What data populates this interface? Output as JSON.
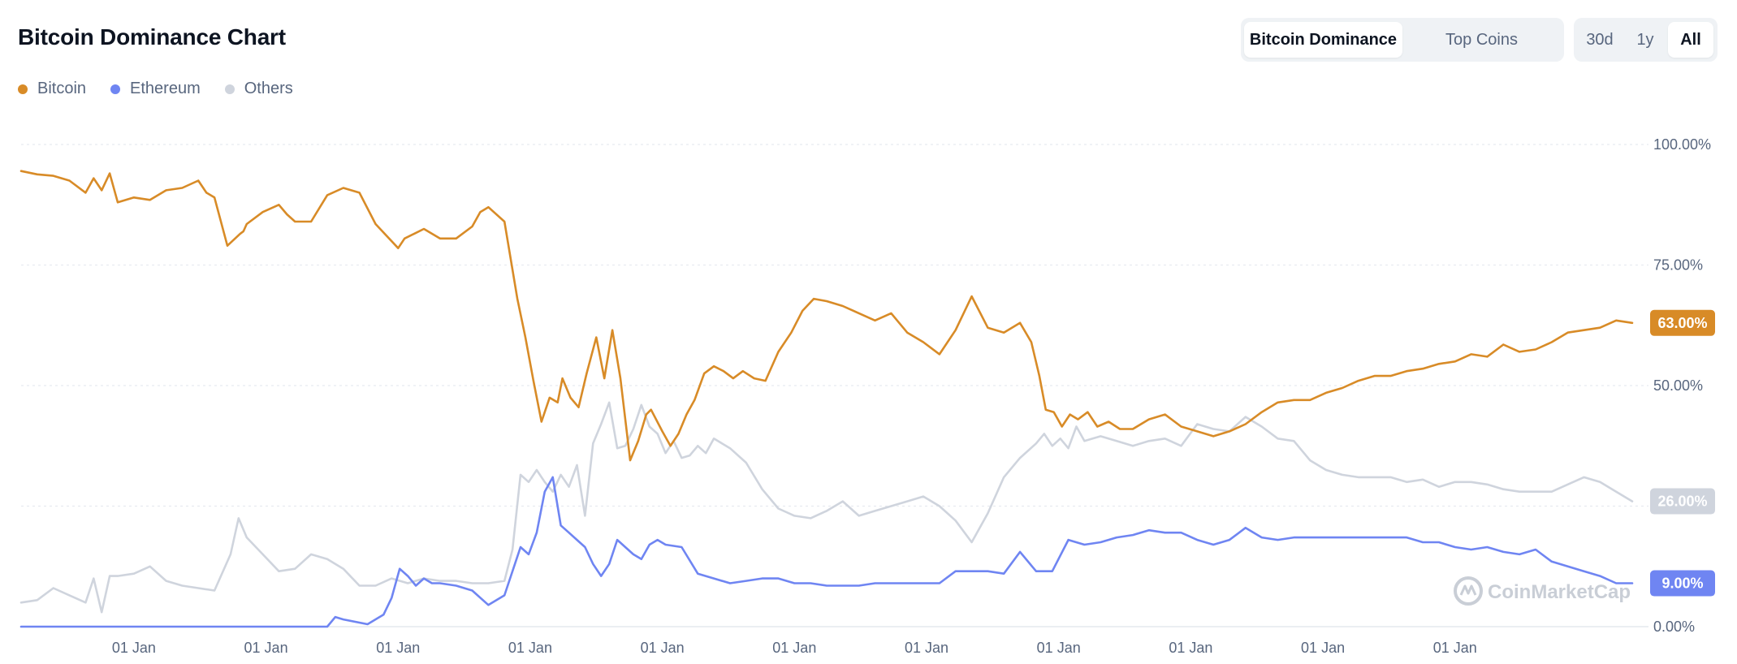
{
  "page_title": "Bitcoin Dominance Chart",
  "view_toggle": {
    "options": [
      "Bitcoin Dominance",
      "Top Coins"
    ],
    "active": 0
  },
  "range_toggle": {
    "options": [
      "30d",
      "1y",
      "All"
    ],
    "active": 2
  },
  "watermark": "CoinMarketCap",
  "colors": {
    "bitcoin": "#d88b27",
    "ethereum": "#6f85f2",
    "others": "#cfd4dd",
    "grid": "#e8ebf0",
    "text": "#58667e"
  },
  "chart_data": {
    "type": "line",
    "xlabel": "",
    "ylabel": "",
    "ylim": [
      0,
      100
    ],
    "y_ticks": [
      "0.00%",
      "25.00%",
      "50.00%",
      "75.00%",
      "100.00%"
    ],
    "y_tick_values": [
      0,
      25,
      50,
      75,
      100
    ],
    "x_range": [
      0,
      100
    ],
    "x_tick_positions": [
      7,
      15.2,
      23.4,
      31.6,
      39.8,
      48,
      56.2,
      64.4,
      72.6,
      80.8,
      89
    ],
    "x_tick_labels": [
      "01 Jan",
      "01 Jan",
      "01 Jan",
      "01 Jan",
      "01 Jan",
      "01 Jan",
      "01 Jan",
      "01 Jan",
      "01 Jan",
      "01 Jan",
      "01 Jan"
    ],
    "legend_position": "top-left",
    "series": [
      {
        "name": "Bitcoin",
        "color": "#d88b27",
        "end_label": "63.00%",
        "x": [
          0,
          1,
          2,
          3,
          4,
          4.5,
          5,
          5.5,
          6,
          7,
          8,
          9,
          10,
          11,
          11.5,
          12,
          12.8,
          13.6,
          13.8,
          14,
          15,
          16,
          16.5,
          17,
          18,
          19,
          20,
          21,
          22,
          23.4,
          23.8,
          24.4,
          25,
          26,
          27,
          28,
          28.5,
          29,
          30,
          30.8,
          31.3,
          31.8,
          32.3,
          32.8,
          33.3,
          33.6,
          34.1,
          34.6,
          35.1,
          35.7,
          36.2,
          36.7,
          37.2,
          37.8,
          38.3,
          38.8,
          39.1,
          39.8,
          40.3,
          40.8,
          41.3,
          41.8,
          42.4,
          43.0,
          43.6,
          44.2,
          44.8,
          45.5,
          46.2,
          47.0,
          47.8,
          48.5,
          49.2,
          50.0,
          51.0,
          52.0,
          53.0,
          54.0,
          55.0,
          56.0,
          57.0,
          58.0,
          59.0,
          60.0,
          61.0,
          62.0,
          62.7,
          63.2,
          63.6,
          64.1,
          64.6,
          65.1,
          65.6,
          66.2,
          66.8,
          67.5,
          68.2,
          69.0,
          70.0,
          71.0,
          72.0,
          73.0,
          74.0,
          75.0,
          76.0,
          77.0,
          78.0,
          79.0,
          80.0,
          81.0,
          82.0,
          83.0,
          84.0,
          85.0,
          86.0,
          87.0,
          88.0,
          89.0,
          90.0,
          91.0,
          92.0,
          93.0,
          94.0,
          95.0,
          96.0,
          97.0,
          98.0,
          99.0,
          100
        ],
        "values": [
          94.5,
          93.8,
          93.5,
          92.5,
          90.0,
          93.0,
          90.5,
          94.0,
          88.0,
          89.0,
          88.5,
          90.5,
          91.0,
          92.5,
          90.0,
          89.0,
          79.0,
          81.5,
          82.0,
          83.5,
          86.0,
          87.5,
          85.5,
          84.0,
          84.0,
          89.5,
          91.0,
          90.0,
          83.5,
          78.5,
          80.5,
          81.5,
          82.5,
          80.5,
          80.5,
          83.0,
          86.0,
          87.0,
          84.0,
          68.0,
          60.0,
          51.0,
          42.5,
          47.5,
          46.5,
          51.5,
          47.5,
          45.5,
          52.5,
          60.0,
          51.5,
          61.5,
          51.5,
          34.5,
          38.5,
          44.0,
          45.0,
          40.5,
          37.5,
          40.0,
          44.0,
          47.0,
          52.5,
          54.0,
          53.0,
          51.5,
          53.0,
          51.5,
          51.0,
          57.0,
          61.0,
          65.5,
          68.0,
          67.5,
          66.5,
          65.0,
          63.5,
          65.0,
          61.0,
          59.0,
          56.5,
          61.5,
          68.5,
          62.0,
          61.0,
          63.0,
          59.0,
          52.0,
          45.0,
          44.5,
          41.5,
          44.0,
          43.0,
          44.5,
          41.5,
          42.5,
          41.0,
          41.0,
          43.0,
          44.0,
          41.5,
          40.5,
          39.5,
          40.5,
          42.0,
          44.5,
          46.5,
          47.0,
          47.0,
          48.5,
          49.5,
          51.0,
          52.0,
          52.0,
          53.0,
          53.5,
          54.5,
          55.0,
          56.5,
          56.0,
          58.5,
          57.0,
          57.5,
          59.0,
          61.0,
          61.5,
          62.0,
          63.5,
          63.0
        ]
      },
      {
        "name": "Ethereum",
        "color": "#6f85f2",
        "end_label": "9.00%",
        "x": [
          0,
          19.0,
          19.5,
          20.0,
          21.5,
          22.5,
          23.0,
          23.5,
          24.0,
          24.5,
          25.0,
          25.5,
          26.0,
          27.0,
          28.0,
          29.0,
          30.0,
          31.0,
          31.5,
          32.0,
          32.5,
          33.0,
          33.5,
          34.0,
          34.5,
          35.0,
          35.5,
          36.0,
          36.5,
          37.0,
          37.5,
          38.0,
          38.5,
          39.0,
          39.5,
          40.0,
          41.0,
          42.0,
          43.0,
          44.0,
          45.0,
          46.0,
          47.0,
          48.0,
          49.0,
          50.0,
          51.0,
          52.0,
          53.0,
          54.0,
          55.0,
          56.0,
          57.0,
          58.0,
          59.0,
          60.0,
          61.0,
          62.0,
          63.0,
          64.0,
          65.0,
          66.0,
          67.0,
          68.0,
          69.0,
          70.0,
          71.0,
          72.0,
          73.0,
          74.0,
          75.0,
          76.0,
          77.0,
          78.0,
          79.0,
          80.0,
          81.0,
          82.0,
          83.0,
          84.0,
          85.0,
          86.0,
          87.0,
          88.0,
          89.0,
          90.0,
          91.0,
          92.0,
          93.0,
          94.0,
          95.0,
          96.0,
          97.0,
          98.0,
          99.0,
          100
        ],
        "values": [
          0,
          0,
          2.0,
          1.5,
          0.5,
          2.5,
          6.0,
          12.0,
          10.5,
          8.5,
          10.0,
          9.0,
          9.0,
          8.5,
          7.5,
          4.5,
          6.5,
          16.5,
          15.0,
          19.5,
          28.0,
          31.0,
          21.0,
          19.5,
          18.0,
          16.5,
          13.0,
          10.5,
          13.0,
          18.0,
          16.5,
          15.0,
          14.0,
          17.0,
          18.0,
          17.0,
          16.5,
          11.0,
          10.0,
          9.0,
          9.5,
          10.0,
          10.0,
          9.0,
          9.0,
          8.5,
          8.5,
          8.5,
          9.0,
          9.0,
          9.0,
          9.0,
          9.0,
          11.5,
          11.5,
          11.5,
          11.0,
          15.5,
          11.5,
          11.5,
          18.0,
          17.0,
          17.5,
          18.5,
          19.0,
          20.0,
          19.5,
          19.5,
          18.0,
          17.0,
          18.0,
          20.5,
          18.5,
          18.0,
          18.5,
          18.5,
          18.5,
          18.5,
          18.5,
          18.5,
          18.5,
          18.5,
          17.5,
          17.5,
          16.5,
          16.0,
          16.5,
          15.5,
          15.0,
          16.0,
          13.5,
          12.5,
          11.5,
          10.5,
          9.0,
          9.0
        ]
      },
      {
        "name": "Others",
        "color": "#cfd4dd",
        "end_label": "26.00%",
        "x": [
          0,
          1.0,
          2.0,
          3.0,
          4.0,
          4.5,
          5.0,
          5.5,
          6.0,
          7.0,
          8.0,
          9.0,
          10.0,
          11.0,
          12.0,
          13.0,
          13.5,
          14.0,
          15.0,
          16.0,
          17.0,
          18.0,
          19.0,
          20.0,
          21.0,
          22.0,
          23.0,
          24.0,
          25.0,
          26.0,
          27.0,
          28.0,
          29.0,
          30.0,
          30.5,
          31.0,
          31.5,
          32.0,
          32.5,
          33.0,
          33.5,
          34.0,
          34.5,
          35.0,
          35.5,
          36.0,
          36.5,
          37.0,
          37.5,
          38.0,
          38.5,
          39.0,
          39.5,
          40.0,
          40.5,
          41.0,
          41.5,
          42.0,
          42.5,
          43.0,
          44.0,
          45.0,
          46.0,
          47.0,
          48.0,
          49.0,
          50.0,
          51.0,
          52.0,
          53.0,
          54.0,
          55.0,
          56.0,
          57.0,
          58.0,
          59.0,
          60.0,
          61.0,
          62.0,
          63.0,
          63.5,
          64.0,
          64.5,
          65.0,
          65.5,
          66.0,
          67.0,
          68.0,
          69.0,
          70.0,
          71.0,
          72.0,
          73.0,
          74.0,
          75.0,
          76.0,
          77.0,
          78.0,
          79.0,
          80.0,
          81.0,
          82.0,
          83.0,
          84.0,
          85.0,
          86.0,
          87.0,
          88.0,
          89.0,
          90.0,
          91.0,
          92.0,
          93.0,
          94.0,
          95.0,
          96.0,
          97.0,
          98.0,
          99.0,
          100
        ],
        "values": [
          5.0,
          5.5,
          8.0,
          6.5,
          5.0,
          10.0,
          3.0,
          10.5,
          10.5,
          11.0,
          12.5,
          9.5,
          8.5,
          8.0,
          7.5,
          15.0,
          22.5,
          18.5,
          15.0,
          11.5,
          12.0,
          15.0,
          14.0,
          12.0,
          8.5,
          8.5,
          10.0,
          9.0,
          10.0,
          9.5,
          9.5,
          9.0,
          9.0,
          9.5,
          16.0,
          31.5,
          30.0,
          32.5,
          30.0,
          28.0,
          31.5,
          29.0,
          33.5,
          23.0,
          38.0,
          42.0,
          46.5,
          37.0,
          37.5,
          41.0,
          46.0,
          41.5,
          40.0,
          36.0,
          38.5,
          35.0,
          35.5,
          37.5,
          36.0,
          39.0,
          37.0,
          34.0,
          28.5,
          24.5,
          23.0,
          22.5,
          24.0,
          26.0,
          23.0,
          24.0,
          25.0,
          26.0,
          27.0,
          25.0,
          22.0,
          17.5,
          23.5,
          31.0,
          35.0,
          38.0,
          40.0,
          37.5,
          39.0,
          37.0,
          41.5,
          38.5,
          39.5,
          38.5,
          37.5,
          38.5,
          39.0,
          37.5,
          42.0,
          41.0,
          40.5,
          43.5,
          41.5,
          39.0,
          38.5,
          34.5,
          32.5,
          31.5,
          31.0,
          31.0,
          31.0,
          30.0,
          30.5,
          29.0,
          30.0,
          30.0,
          29.5,
          28.5,
          28.0,
          28.0,
          28.0,
          29.5,
          31.0,
          30.0,
          28.0,
          26.0
        ]
      }
    ]
  }
}
